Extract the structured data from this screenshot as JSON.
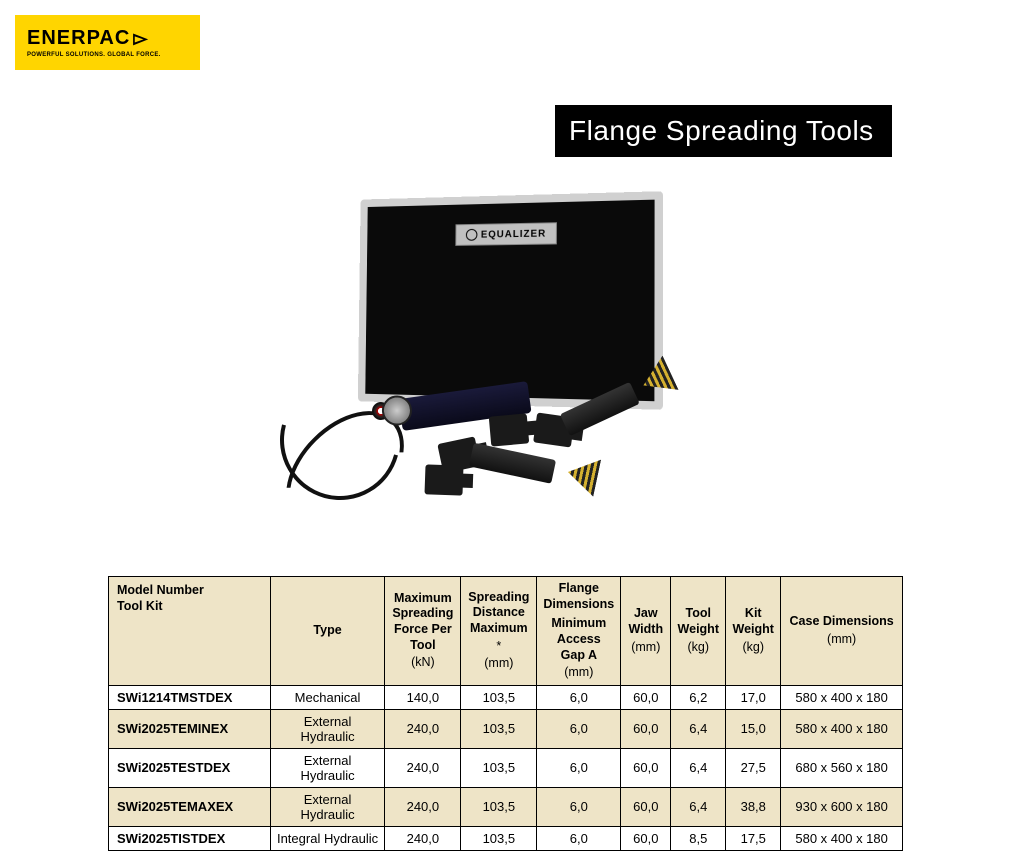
{
  "logo": {
    "brand": "ENERPAC",
    "tagline": "POWERFUL SOLUTIONS. GLOBAL FORCE."
  },
  "title": "Flange Spreading Tools",
  "case_brand": "EQUALIZER",
  "table": {
    "headers": {
      "model": "Model Number",
      "model_sub": "Tool Kit",
      "type": "Type",
      "force": "Maximum Spreading Force Per Tool",
      "force_unit": "(kN)",
      "dist": "Spreading Distance Maximum",
      "dist_star": "*",
      "dist_unit": "(mm)",
      "flange": "Flange Dimensions",
      "flange_sub": "Minimum Access Gap A",
      "flange_unit": "(mm)",
      "jaw": "Jaw Width",
      "jaw_unit": "(mm)",
      "tw": "Tool Weight",
      "tw_unit": "(kg)",
      "kw": "Kit Weight",
      "kw_unit": "(kg)",
      "case": "Case Dimensions",
      "case_unit": "(mm)"
    },
    "rows": [
      {
        "model": "SWi1214TMSTDEX",
        "type": "Mechanical",
        "force": "140,0",
        "dist": "103,5",
        "flange": "6,0",
        "jaw": "60,0",
        "tw": "6,2",
        "kw": "17,0",
        "case": "580 x 400 x 180"
      },
      {
        "model": "SWi2025TEMINEX",
        "type": "External Hydraulic",
        "force": "240,0",
        "dist": "103,5",
        "flange": "6,0",
        "jaw": "60,0",
        "tw": "6,4",
        "kw": "15,0",
        "case": "580 x 400 x 180"
      },
      {
        "model": "SWi2025TESTDEX",
        "type": "External Hydraulic",
        "force": "240,0",
        "dist": "103,5",
        "flange": "6,0",
        "jaw": "60,0",
        "tw": "6,4",
        "kw": "27,5",
        "case": "680 x 560 x 180"
      },
      {
        "model": "SWi2025TEMAXEX",
        "type": "External Hydraulic",
        "force": "240,0",
        "dist": "103,5",
        "flange": "6,0",
        "jaw": "60,0",
        "tw": "6,4",
        "kw": "38,8",
        "case": "930 x 600 x 180"
      },
      {
        "model": "SWi2025TISTDEX",
        "type": "Integral Hydraulic",
        "force": "240,0",
        "dist": "103,5",
        "flange": "6,0",
        "jaw": "60,0",
        "tw": "8,5",
        "kw": "17,5",
        "case": "580 x 400 x 180"
      }
    ]
  }
}
